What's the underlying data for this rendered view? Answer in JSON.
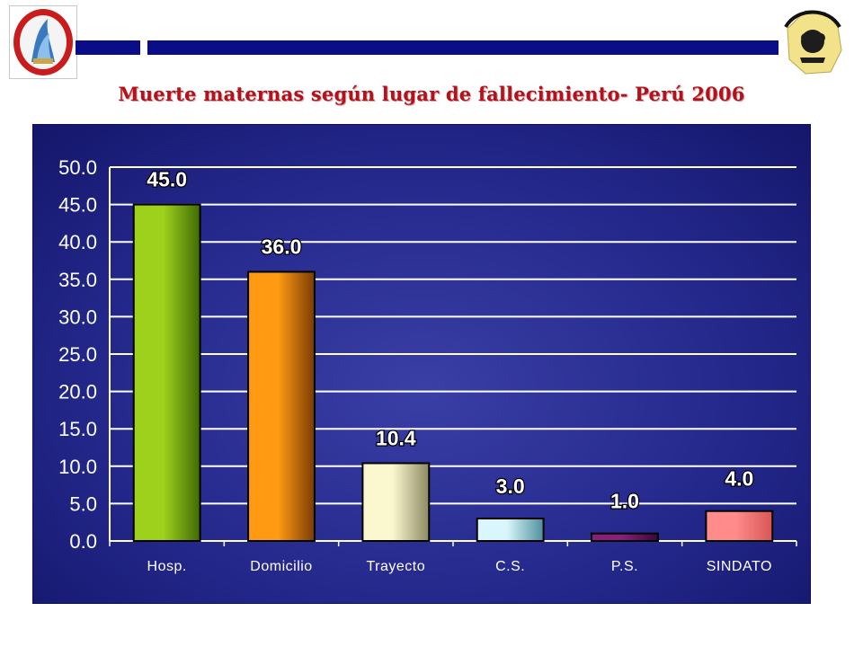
{
  "header": {
    "title": "Muerte maternas según lugar de fallecimiento-  Perú 2006",
    "logo_left_name": "Gobierno Regional Ayacucho",
    "logo_right_name": "Dirección Regional de Salud Ayacucho"
  },
  "colors": {
    "header_bar": "#0b0d86",
    "title": "#b3121d",
    "panel": "#23278a"
  },
  "chart_data": {
    "type": "bar",
    "title": "",
    "xlabel": "",
    "ylabel": "",
    "categories": [
      "Hosp.",
      "Domicilio",
      "Trayecto",
      "C.S.",
      "P.S.",
      "SINDATO"
    ],
    "values": [
      45.0,
      36.0,
      10.4,
      3.0,
      1.0,
      4.0
    ],
    "data_labels": [
      "45.0",
      "36.0",
      "10.4",
      "3.0",
      "1.0",
      "4.0"
    ],
    "bar_colors": [
      [
        "#9ed11c",
        "#3f6a06"
      ],
      [
        "#ff9a12",
        "#7a3c05"
      ],
      [
        "#fbf8d0",
        "#8c8a62"
      ],
      [
        "#d8f6fb",
        "#4e8f9c"
      ],
      [
        "#8a1f78",
        "#3b0838"
      ],
      [
        "#ff8b8b",
        "#d85555"
      ]
    ],
    "yticks": [
      "0.0",
      "5.0",
      "10.0",
      "15.0",
      "20.0",
      "25.0",
      "30.0",
      "35.0",
      "40.0",
      "45.0",
      "50.0"
    ],
    "ylim": [
      0,
      50
    ],
    "grid": true,
    "legend": "none"
  }
}
